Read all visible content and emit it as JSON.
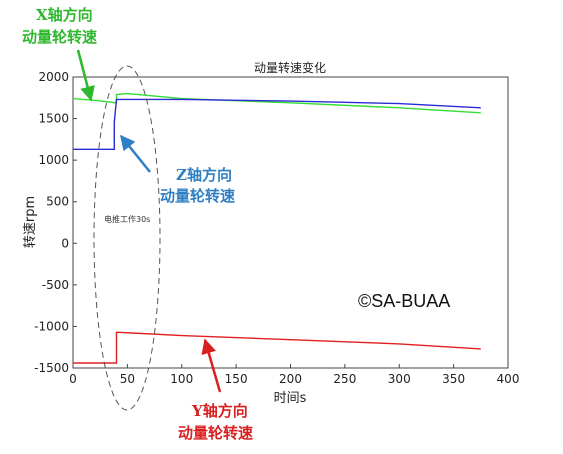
{
  "chart_data": {
    "type": "line",
    "title": "动量转速变化",
    "xlabel": "时间s",
    "ylabel": "转速rpm",
    "xlim": [
      0,
      400
    ],
    "ylim": [
      -1500,
      2000
    ],
    "xticks": [
      0,
      50,
      100,
      150,
      200,
      250,
      300,
      350,
      400
    ],
    "yticks": [
      -1500,
      -1000,
      -500,
      0,
      500,
      1000,
      1500,
      2000
    ],
    "grid": false,
    "series": [
      {
        "color": "#33dd33",
        "points": [
          [
            0,
            1740
          ],
          [
            20,
            1720
          ],
          [
            40,
            1690
          ],
          [
            40,
            1790
          ],
          [
            50,
            1800
          ],
          [
            100,
            1740
          ],
          [
            200,
            1690
          ],
          [
            300,
            1630
          ],
          [
            375,
            1570
          ]
        ]
      },
      {
        "color": "#2b2bd6",
        "points": [
          [
            0,
            1130
          ],
          [
            38,
            1130
          ],
          [
            38,
            1460
          ],
          [
            40,
            1730
          ],
          [
            60,
            1730
          ],
          [
            100,
            1730
          ],
          [
            200,
            1710
          ],
          [
            300,
            1680
          ],
          [
            375,
            1630
          ]
        ]
      },
      {
        "color": "#e02020",
        "points": [
          [
            0,
            -1440
          ],
          [
            40,
            -1440
          ],
          [
            40,
            -1070
          ],
          [
            100,
            -1110
          ],
          [
            200,
            -1160
          ],
          [
            300,
            -1210
          ],
          [
            375,
            -1270
          ]
        ]
      }
    ],
    "annotations": {
      "x_wheel": [
        "X轴方向",
        "动量轮转速"
      ],
      "z_wheel": [
        "Z轴方向",
        "动量轮转速"
      ],
      "y_wheel": [
        "Y轴方向",
        "动量轮转速"
      ],
      "motor_note": "电推工作30s",
      "copyright": "©SA-BUAA"
    }
  }
}
